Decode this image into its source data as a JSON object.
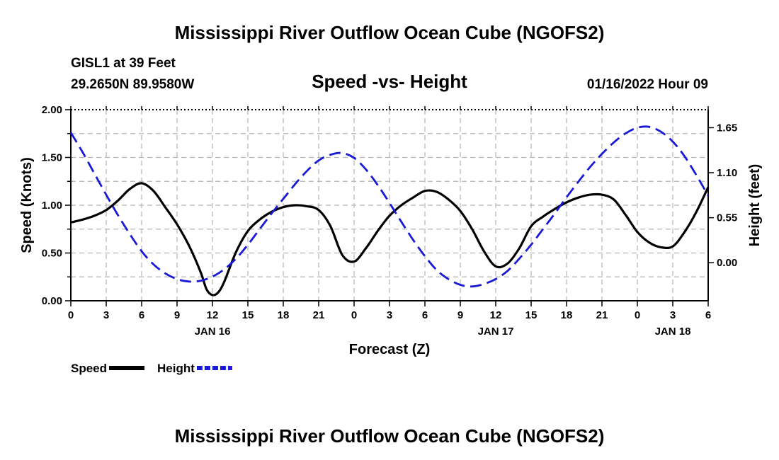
{
  "title": "Mississippi River Outflow Ocean Cube (NGOFS2)",
  "bottom_title": "Mississippi River Outflow Ocean Cube (NGOFS2)",
  "station": "GISL1 at 39 Feet",
  "coordinates": "29.2650N  89.9580W",
  "plot_title": "Speed -vs- Height",
  "date_label": "01/16/2022 Hour 09",
  "colors": {
    "speed": "#000000",
    "height": "#1a1ad6",
    "grid": "#b4b4b4"
  },
  "legend": [
    {
      "label": "Speed",
      "color": "#000000",
      "style": "solid"
    },
    {
      "label": "Height",
      "color": "#1a1ad6",
      "style": "dashed"
    }
  ],
  "chart_data": {
    "type": "line",
    "title": "Speed -vs- Height",
    "xlabel": "Forecast (Z)",
    "ylabel": "Speed (Knots)",
    "y2label": "Height (feet)",
    "xlim": [
      0,
      54
    ],
    "ylim": [
      0,
      2.0
    ],
    "y2lim": [
      -0.465,
      1.87
    ],
    "x_tick_values": [
      0,
      3,
      6,
      9,
      12,
      15,
      18,
      21,
      24,
      27,
      30,
      33,
      36,
      39,
      42,
      45,
      48,
      51,
      54
    ],
    "x_tick_labels": [
      "0",
      "3",
      "6",
      "9",
      "12",
      "15",
      "18",
      "21",
      "0",
      "3",
      "6",
      "9",
      "12",
      "15",
      "18",
      "21",
      "0",
      "3",
      "6"
    ],
    "date_labels": [
      {
        "x": 12,
        "label": "JAN 16"
      },
      {
        "x": 36,
        "label": "JAN 17"
      },
      {
        "x": 51,
        "label": "JAN 18"
      }
    ],
    "y_ticks": [
      0.0,
      0.5,
      1.0,
      1.5,
      2.0
    ],
    "y_tick_labels": [
      "0.00",
      "0.50",
      "1.00",
      "1.50",
      "2.00"
    ],
    "y2_ticks": [
      0.0,
      0.55,
      1.1,
      1.65
    ],
    "y2_tick_labels": [
      "0.00",
      "0.55",
      "1.10",
      "1.65"
    ],
    "grid": true,
    "series": [
      {
        "name": "Speed",
        "axis": "left",
        "x": [
          0,
          1,
          2,
          3,
          4,
          5,
          6,
          7,
          8,
          9,
          10,
          11,
          11.5,
          12,
          12.5,
          13,
          14,
          15,
          16,
          17,
          18,
          19,
          20,
          21,
          22,
          23,
          24,
          25,
          26,
          27,
          28,
          29,
          30,
          31,
          32,
          33,
          34,
          35,
          36,
          37,
          38,
          39,
          40,
          41,
          42,
          43,
          44,
          45,
          46,
          47,
          48,
          49,
          50,
          51,
          52,
          53,
          54
        ],
        "values": [
          0.82,
          0.85,
          0.89,
          0.95,
          1.05,
          1.17,
          1.23,
          1.15,
          0.98,
          0.8,
          0.58,
          0.3,
          0.12,
          0.06,
          0.09,
          0.2,
          0.51,
          0.73,
          0.85,
          0.93,
          0.98,
          1.0,
          0.99,
          0.95,
          0.78,
          0.48,
          0.41,
          0.55,
          0.73,
          0.89,
          1.0,
          1.08,
          1.15,
          1.14,
          1.06,
          0.94,
          0.75,
          0.52,
          0.36,
          0.39,
          0.55,
          0.78,
          0.88,
          0.96,
          1.03,
          1.08,
          1.11,
          1.11,
          1.06,
          0.9,
          0.72,
          0.61,
          0.56,
          0.57,
          0.72,
          0.93,
          1.19
        ]
      },
      {
        "name": "Height",
        "axis": "right",
        "x": [
          0,
          1,
          2,
          3,
          4,
          5,
          6,
          7,
          8,
          9,
          10,
          11,
          12,
          13,
          14,
          15,
          16,
          17,
          18,
          19,
          20,
          21,
          22,
          23,
          24,
          25,
          26,
          27,
          28,
          29,
          30,
          31,
          32,
          33,
          34,
          35,
          36,
          37,
          38,
          39,
          40,
          41,
          42,
          43,
          44,
          45,
          46,
          47,
          48,
          49,
          50,
          51,
          52,
          53,
          54
        ],
        "values": [
          1.59,
          1.35,
          1.09,
          0.83,
          0.58,
          0.35,
          0.14,
          -0.02,
          -0.13,
          -0.2,
          -0.23,
          -0.22,
          -0.17,
          -0.08,
          0.05,
          0.22,
          0.41,
          0.6,
          0.78,
          0.96,
          1.12,
          1.25,
          1.32,
          1.34,
          1.28,
          1.14,
          0.95,
          0.73,
          0.5,
          0.28,
          0.08,
          -0.09,
          -0.2,
          -0.27,
          -0.29,
          -0.26,
          -0.2,
          -0.1,
          0.05,
          0.22,
          0.41,
          0.6,
          0.8,
          0.99,
          1.17,
          1.33,
          1.47,
          1.58,
          1.65,
          1.66,
          1.6,
          1.48,
          1.3,
          1.07,
          0.82
        ]
      }
    ]
  }
}
